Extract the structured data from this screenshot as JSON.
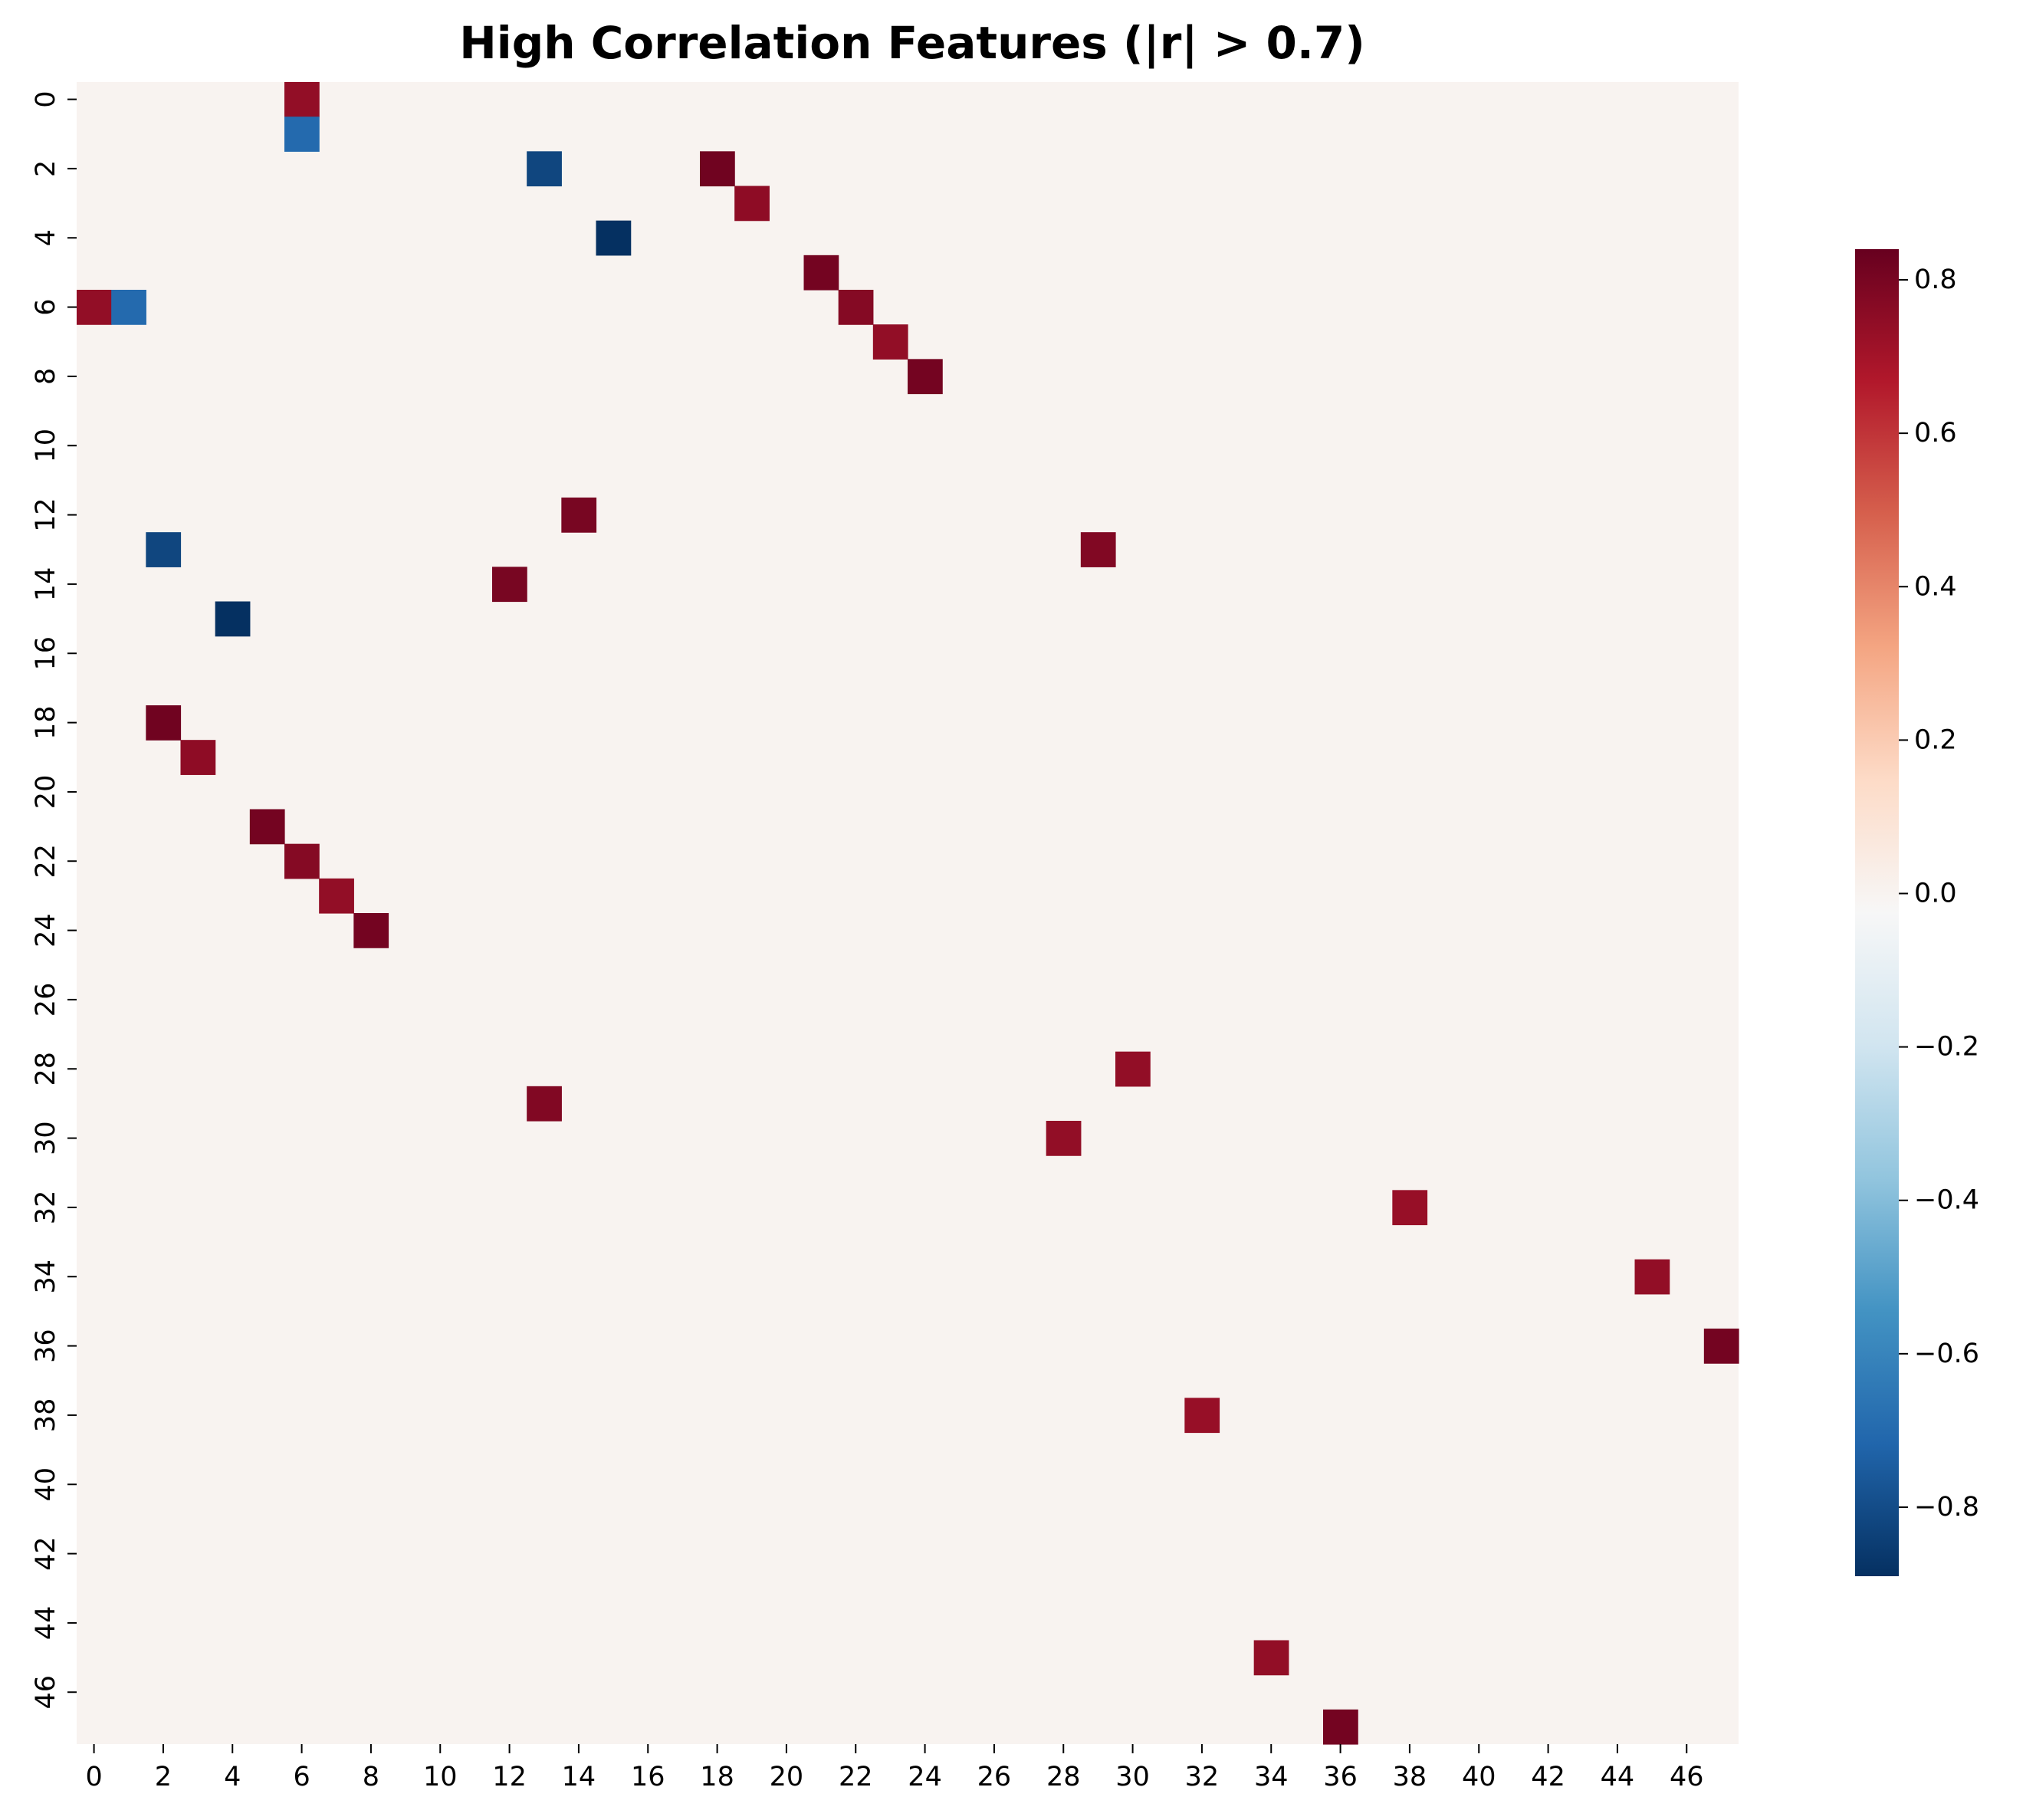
{
  "chart_data": {
    "type": "heatmap",
    "title": "High Correlation Features (|r| > 0.7)",
    "xlabel": "",
    "ylabel": "",
    "n": 48,
    "x_ticks": [
      0,
      2,
      4,
      6,
      8,
      10,
      12,
      14,
      16,
      18,
      20,
      22,
      24,
      26,
      28,
      30,
      32,
      34,
      36,
      38,
      40,
      42,
      44,
      46
    ],
    "y_ticks": [
      0,
      2,
      4,
      6,
      8,
      10,
      12,
      14,
      16,
      18,
      20,
      22,
      24,
      26,
      28,
      30,
      32,
      34,
      36,
      38,
      40,
      42,
      44,
      46
    ],
    "background_value": 0.0,
    "cells": [
      {
        "row": 0,
        "col": 6,
        "value": 0.74
      },
      {
        "row": 1,
        "col": 6,
        "value": -0.7
      },
      {
        "row": 2,
        "col": 13,
        "value": -0.82
      },
      {
        "row": 2,
        "col": 18,
        "value": 0.82
      },
      {
        "row": 3,
        "col": 19,
        "value": 0.75
      },
      {
        "row": 4,
        "col": 15,
        "value": -0.89
      },
      {
        "row": 5,
        "col": 21,
        "value": 0.81
      },
      {
        "row": 6,
        "col": 0,
        "value": 0.74
      },
      {
        "row": 6,
        "col": 1,
        "value": -0.7
      },
      {
        "row": 6,
        "col": 22,
        "value": 0.77
      },
      {
        "row": 7,
        "col": 23,
        "value": 0.74
      },
      {
        "row": 8,
        "col": 24,
        "value": 0.81
      },
      {
        "row": 12,
        "col": 14,
        "value": 0.8
      },
      {
        "row": 13,
        "col": 2,
        "value": -0.82
      },
      {
        "row": 13,
        "col": 29,
        "value": 0.78
      },
      {
        "row": 14,
        "col": 12,
        "value": 0.8
      },
      {
        "row": 15,
        "col": 4,
        "value": -0.89
      },
      {
        "row": 18,
        "col": 2,
        "value": 0.82
      },
      {
        "row": 19,
        "col": 3,
        "value": 0.75
      },
      {
        "row": 21,
        "col": 5,
        "value": 0.81
      },
      {
        "row": 22,
        "col": 6,
        "value": 0.77
      },
      {
        "row": 23,
        "col": 7,
        "value": 0.74
      },
      {
        "row": 24,
        "col": 8,
        "value": 0.81
      },
      {
        "row": 28,
        "col": 30,
        "value": 0.74
      },
      {
        "row": 29,
        "col": 13,
        "value": 0.78
      },
      {
        "row": 30,
        "col": 28,
        "value": 0.74
      },
      {
        "row": 32,
        "col": 38,
        "value": 0.73
      },
      {
        "row": 34,
        "col": 45,
        "value": 0.74
      },
      {
        "row": 36,
        "col": 47,
        "value": 0.81
      },
      {
        "row": 38,
        "col": 32,
        "value": 0.73
      },
      {
        "row": 45,
        "col": 34,
        "value": 0.74
      },
      {
        "row": 47,
        "col": 36,
        "value": 0.81
      }
    ],
    "colorbar": {
      "colormap": "RdBu_r",
      "vmin": -0.89,
      "vmax": 0.84,
      "ticks": [
        0.8,
        0.6,
        0.4,
        0.2,
        0.0,
        -0.2,
        -0.4,
        -0.6,
        -0.8
      ],
      "tick_labels": [
        "0.8",
        "0.6",
        "0.4",
        "0.2",
        "0.0",
        "−0.2",
        "−0.4",
        "−0.6",
        "−0.8"
      ]
    }
  }
}
